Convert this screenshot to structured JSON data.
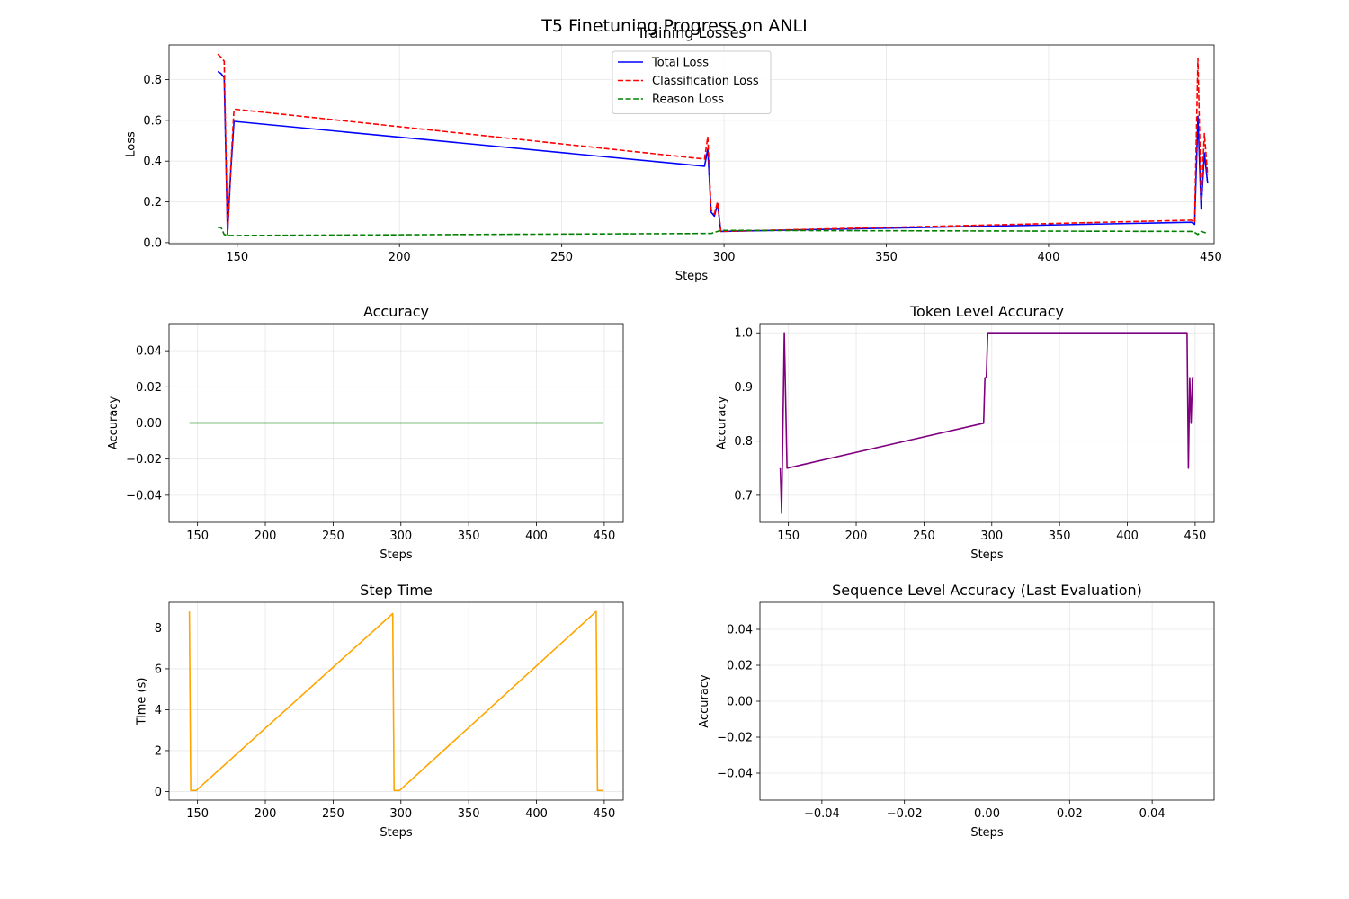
{
  "figure_title": "T5 Finetuning Progress on ANLI",
  "chart_data": [
    {
      "id": "losses",
      "type": "line",
      "title": "Training Losses",
      "xlabel": "Steps",
      "ylabel": "Loss",
      "xlim": [
        129,
        451
      ],
      "ylim": [
        -0.005,
        0.97
      ],
      "xticks": [
        150,
        200,
        250,
        300,
        350,
        400,
        450
      ],
      "yticks": [
        0.0,
        0.2,
        0.4,
        0.6,
        0.8
      ],
      "ytick_decimals": 1,
      "grid": true,
      "legend": "top-center",
      "series": [
        {
          "name": "Total Loss",
          "color": "#0000ff",
          "dash": "solid",
          "x": [
            144,
            145,
            146,
            147,
            148,
            149,
            294,
            295,
            296,
            297,
            298,
            299,
            444,
            445,
            446,
            447,
            448,
            449
          ],
          "y": [
            0.84,
            0.83,
            0.81,
            0.04,
            0.35,
            0.595,
            0.375,
            0.46,
            0.15,
            0.13,
            0.19,
            0.055,
            0.1,
            0.09,
            0.62,
            0.165,
            0.44,
            0.29
          ]
        },
        {
          "name": "Classification Loss",
          "color": "#ff0000",
          "dash": "dashed",
          "x": [
            144,
            145,
            146,
            147,
            148,
            149,
            294,
            295,
            296,
            297,
            298,
            299,
            444,
            445,
            446,
            447,
            448,
            449
          ],
          "y": [
            0.925,
            0.91,
            0.89,
            0.04,
            0.37,
            0.655,
            0.41,
            0.52,
            0.16,
            0.14,
            0.2,
            0.055,
            0.11,
            0.1,
            0.905,
            0.2,
            0.535,
            0.33
          ]
        },
        {
          "name": "Reason Loss",
          "color": "#008000",
          "dash": "dashed",
          "x": [
            144,
            145,
            146,
            147,
            148,
            149,
            294,
            295,
            296,
            297,
            298,
            299,
            444,
            445,
            446,
            447,
            448,
            449
          ],
          "y": [
            0.075,
            0.075,
            0.04,
            0.035,
            0.035,
            0.035,
            0.045,
            0.045,
            0.045,
            0.05,
            0.055,
            0.06,
            0.055,
            0.05,
            0.04,
            0.055,
            0.05,
            0.045
          ]
        }
      ]
    },
    {
      "id": "accuracy",
      "type": "line",
      "title": "Accuracy",
      "xlabel": "Steps",
      "ylabel": "Accuracy",
      "xlim": [
        129,
        464
      ],
      "ylim": [
        -0.055,
        0.055
      ],
      "xticks": [
        150,
        200,
        250,
        300,
        350,
        400,
        450
      ],
      "yticks": [
        -0.04,
        -0.02,
        0.0,
        0.02,
        0.04
      ],
      "ytick_decimals": 2,
      "grid": true,
      "series": [
        {
          "name": "Accuracy",
          "color": "#008000",
          "dash": "solid",
          "x": [
            144,
            449
          ],
          "y": [
            0.0,
            0.0
          ]
        }
      ]
    },
    {
      "id": "token_accuracy",
      "type": "line",
      "title": "Token Level Accuracy",
      "xlabel": "Steps",
      "ylabel": "Accuracy",
      "xlim": [
        129,
        464
      ],
      "ylim": [
        0.65,
        1.017
      ],
      "xticks": [
        150,
        200,
        250,
        300,
        350,
        400,
        450
      ],
      "yticks": [
        0.7,
        0.8,
        0.9,
        1.0
      ],
      "ytick_decimals": 1,
      "grid": true,
      "series": [
        {
          "name": "Token Level Accuracy",
          "color": "#800080",
          "dash": "solid",
          "x": [
            144,
            145,
            147,
            149,
            294,
            295,
            296,
            297,
            298,
            299,
            444,
            445,
            446,
            447,
            448,
            449
          ],
          "y": [
            0.75,
            0.667,
            1.0,
            0.75,
            0.833,
            0.917,
            0.917,
            1.0,
            1.0,
            1.0,
            1.0,
            0.75,
            0.917,
            0.833,
            0.917,
            0.917
          ]
        }
      ]
    },
    {
      "id": "step_time",
      "type": "line",
      "title": "Step Time",
      "xlabel": "Steps",
      "ylabel": "Time (s)",
      "xlim": [
        129,
        464
      ],
      "ylim": [
        -0.42,
        9.25
      ],
      "xticks": [
        150,
        200,
        250,
        300,
        350,
        400,
        450
      ],
      "yticks": [
        0,
        2,
        4,
        6,
        8
      ],
      "ytick_decimals": 0,
      "grid": true,
      "series": [
        {
          "name": "Step Time",
          "color": "#ffa500",
          "dash": "solid",
          "x": [
            144,
            145,
            149,
            294,
            295,
            299,
            444,
            445,
            449
          ],
          "y": [
            8.8,
            0.05,
            0.05,
            8.7,
            0.05,
            0.05,
            8.8,
            0.05,
            0.05
          ]
        }
      ]
    },
    {
      "id": "sequence_accuracy",
      "type": "line",
      "title": "Sequence Level Accuracy (Last Evaluation)",
      "xlabel": "Steps",
      "ylabel": "Accuracy",
      "xlim": [
        -0.055,
        0.055
      ],
      "ylim": [
        -0.055,
        0.055
      ],
      "xticks": [
        -0.04,
        -0.02,
        0.0,
        0.02,
        0.04
      ],
      "yticks": [
        -0.04,
        -0.02,
        0.0,
        0.02,
        0.04
      ],
      "xtick_decimals": 2,
      "ytick_decimals": 2,
      "grid": true,
      "series": []
    }
  ]
}
